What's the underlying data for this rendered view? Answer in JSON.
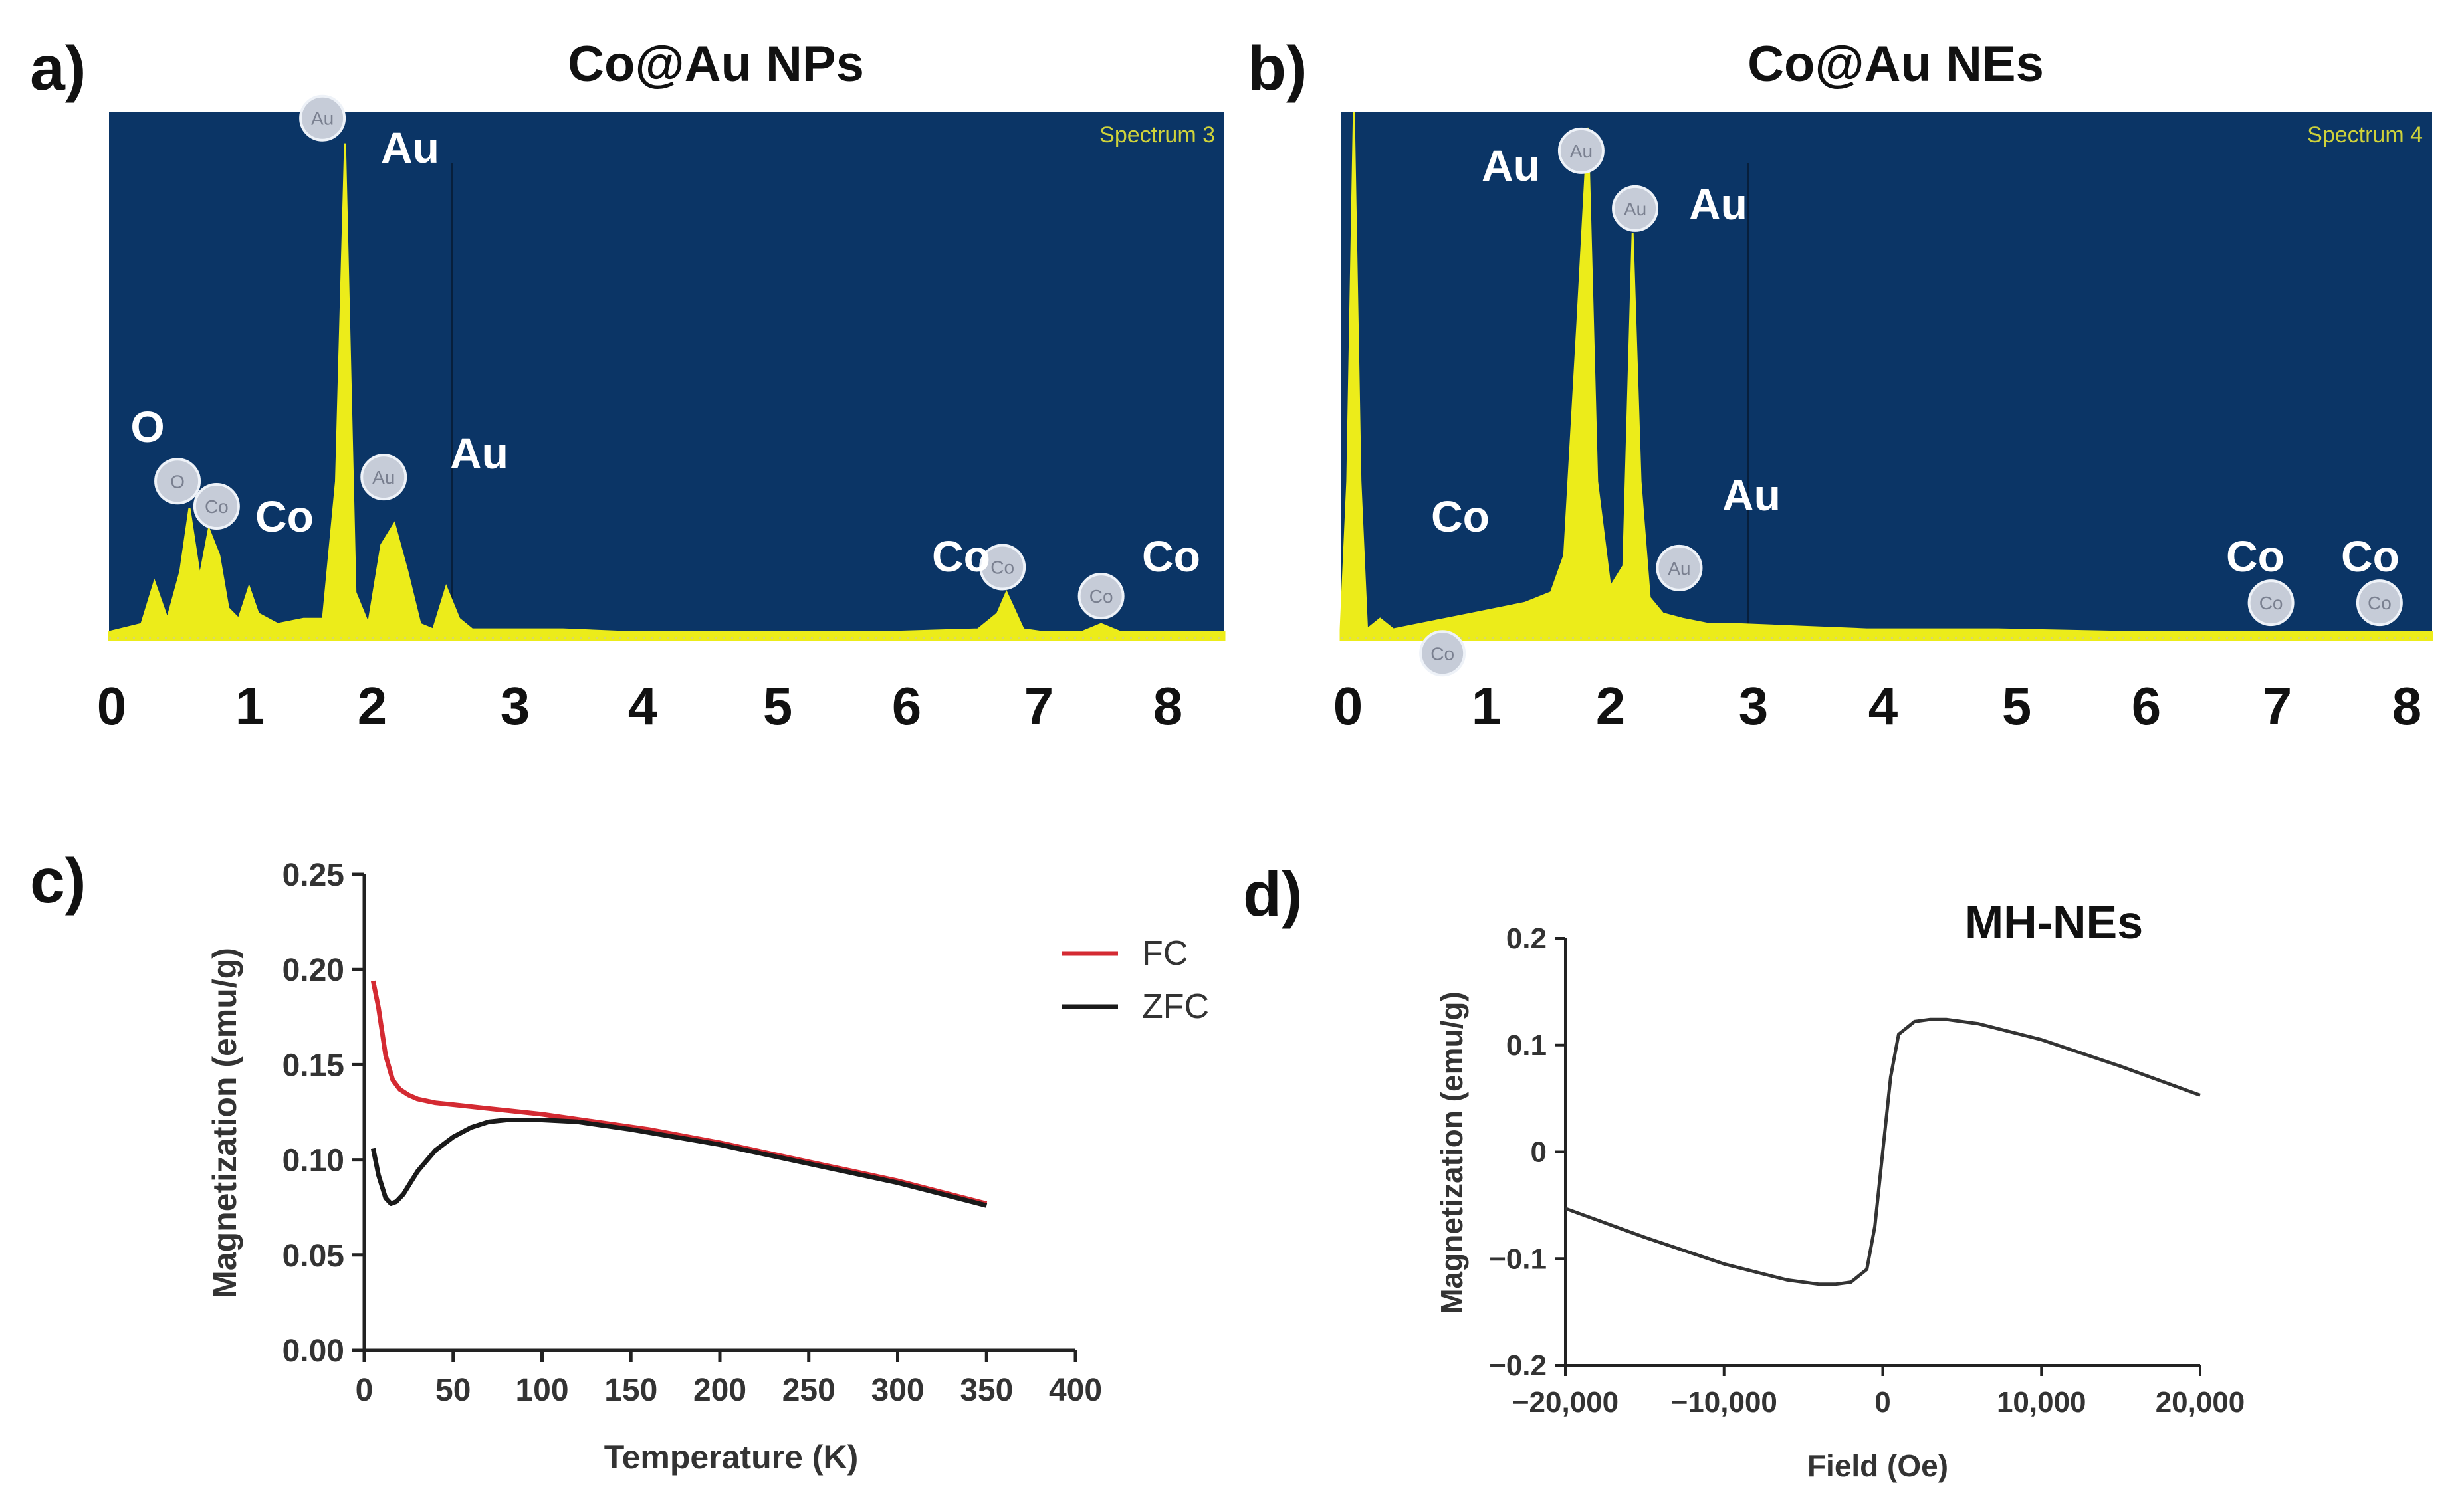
{
  "panels": {
    "a": {
      "letter": "a)",
      "title": "Co@Au NPs",
      "spectrum_label": "Spectrum 3",
      "peak_labels": [
        "O",
        "Co",
        "Au",
        "Au",
        "Co",
        "Co"
      ],
      "marker_texts": [
        "O",
        "Co",
        "Au",
        "Au",
        "Co",
        "Co"
      ]
    },
    "b": {
      "letter": "b)",
      "title": "Co@Au NEs",
      "spectrum_label": "Spectrum 4",
      "peak_labels": [
        "Co",
        "Au",
        "Au",
        "Au",
        "Co",
        "Co"
      ],
      "marker_texts": [
        "Co",
        "Au",
        "Au",
        "Au",
        "Co",
        "Co"
      ]
    },
    "c": {
      "letter": "c)"
    },
    "d": {
      "letter": "d)",
      "title": "MH-NEs"
    }
  },
  "colors": {
    "eds_background": "#0b3566",
    "eds_trace": "#ecec1a",
    "fc_line": "#d42a32",
    "zfc_line": "#1a1a1a",
    "mh_line": "#333333"
  },
  "chart_data": [
    {
      "type": "area",
      "id": "a",
      "title": "Co@Au NPs",
      "xlabel": "",
      "ylabel": "",
      "xlim": [
        0,
        8.6
      ],
      "ylim": [
        0,
        100
      ],
      "xticks": [
        "0",
        "1",
        "2",
        "3",
        "4",
        "5",
        "6",
        "7",
        "8"
      ],
      "x": [
        0,
        0.25,
        0.35,
        0.45,
        0.55,
        0.62,
        0.7,
        0.77,
        0.85,
        0.92,
        1.0,
        1.08,
        1.15,
        1.3,
        1.5,
        1.65,
        1.75,
        1.82,
        1.9,
        2.0,
        2.1,
        2.2,
        2.3,
        2.4,
        2.5,
        2.6,
        2.7,
        2.8,
        3.0,
        3.5,
        4.0,
        5.0,
        6.0,
        6.7,
        6.85,
        6.92,
        7.05,
        7.2,
        7.5,
        7.65,
        7.8,
        8.6
      ],
      "y": [
        1.5,
        3,
        11,
        4,
        13,
        25,
        12,
        21,
        16,
        6,
        4,
        10,
        5,
        3,
        4,
        4,
        30,
        94,
        9,
        3,
        18,
        22,
        13,
        3,
        2,
        10,
        4,
        2,
        2,
        2,
        1.5,
        1.5,
        1.5,
        2,
        5,
        9,
        2,
        1.5,
        1.5,
        3,
        1.5,
        1.5
      ],
      "peaks": [
        {
          "element": "O",
          "x": 0.6,
          "y": 25
        },
        {
          "element": "Co",
          "x": 0.85,
          "y": 21
        },
        {
          "element": "Au",
          "x": 1.82,
          "y": 94
        },
        {
          "element": "Au",
          "x": 2.2,
          "y": 22
        },
        {
          "element": "Co",
          "x": 6.92,
          "y": 9
        },
        {
          "element": "Co",
          "x": 7.65,
          "y": 3
        }
      ]
    },
    {
      "type": "area",
      "id": "b",
      "title": "Co@Au NEs",
      "xlabel": "",
      "ylabel": "",
      "xlim": [
        0,
        8.3
      ],
      "ylim": [
        0,
        100
      ],
      "xticks": [
        "0",
        "1",
        "2",
        "3",
        "4",
        "5",
        "6",
        "7",
        "8"
      ],
      "x": [
        0,
        0.05,
        0.1,
        0.15,
        0.2,
        0.3,
        0.4,
        0.6,
        0.8,
        1.0,
        1.2,
        1.4,
        1.6,
        1.7,
        1.8,
        1.88,
        1.95,
        2.05,
        2.15,
        2.22,
        2.28,
        2.35,
        2.45,
        2.6,
        2.8,
        3.0,
        3.5,
        4.0,
        5.0,
        6.0,
        7.0,
        7.5,
        8.3
      ],
      "y": [
        2,
        30,
        100,
        30,
        2,
        4,
        2,
        3,
        4,
        5,
        6,
        7,
        9,
        16,
        60,
        97,
        30,
        10,
        14,
        77,
        30,
        8,
        5,
        4,
        3,
        3,
        2.5,
        2,
        2,
        1.5,
        1.5,
        1.5,
        1.5
      ],
      "peaks": [
        {
          "element": "Co",
          "x": 0.85,
          "y": 5
        },
        {
          "element": "Au",
          "x": 1.88,
          "y": 97
        },
        {
          "element": "Au",
          "x": 2.28,
          "y": 77
        },
        {
          "element": "Au",
          "x": 2.55,
          "y": 18
        },
        {
          "element": "Co",
          "x": 7.1,
          "y": 2
        },
        {
          "element": "Co",
          "x": 7.9,
          "y": 2
        }
      ]
    },
    {
      "type": "line",
      "id": "c",
      "xlabel": "Temperature (K)",
      "ylabel": "Magnetization (emu/g)",
      "xlim": [
        0,
        400
      ],
      "ylim": [
        0,
        0.25
      ],
      "xticks": [
        "0",
        "50",
        "100",
        "150",
        "200",
        "250",
        "300",
        "350",
        "400"
      ],
      "yticks": [
        "0.00",
        "0.05",
        "0.10",
        "0.15",
        "0.20",
        "0.25"
      ],
      "legend_position": "right",
      "series": [
        {
          "name": "FC",
          "x": [
            5,
            8,
            12,
            16,
            20,
            25,
            30,
            40,
            50,
            70,
            100,
            130,
            160,
            200,
            250,
            300,
            350
          ],
          "y": [
            0.194,
            0.18,
            0.155,
            0.142,
            0.137,
            0.134,
            0.132,
            0.13,
            0.129,
            0.127,
            0.124,
            0.12,
            0.116,
            0.109,
            0.099,
            0.089,
            0.077
          ]
        },
        {
          "name": "ZFC",
          "x": [
            5,
            8,
            12,
            15,
            18,
            22,
            26,
            30,
            40,
            50,
            60,
            70,
            80,
            90,
            100,
            120,
            150,
            200,
            250,
            300,
            350
          ],
          "y": [
            0.106,
            0.092,
            0.08,
            0.077,
            0.078,
            0.082,
            0.088,
            0.094,
            0.105,
            0.112,
            0.117,
            0.12,
            0.121,
            0.121,
            0.121,
            0.12,
            0.116,
            0.108,
            0.098,
            0.088,
            0.076
          ]
        }
      ]
    },
    {
      "type": "line",
      "id": "d",
      "title": "MH-NEs",
      "xlabel": "Field (Oe)",
      "ylabel": "Magnetization (emu/g)",
      "xlim": [
        -20000,
        20000
      ],
      "ylim": [
        -0.2,
        0.2
      ],
      "xticks": [
        "−20,000",
        "−10,000",
        "0",
        "10,000",
        "20,000"
      ],
      "yticks": [
        "−0.2",
        "−0.1",
        "0",
        "0.1",
        "0.2"
      ],
      "series": [
        {
          "name": "MH",
          "x": [
            -20000,
            -15000,
            -10000,
            -6000,
            -4000,
            -3000,
            -2000,
            -1000,
            -500,
            0,
            500,
            1000,
            2000,
            3000,
            4000,
            6000,
            10000,
            15000,
            20000
          ],
          "y": [
            -0.053,
            -0.08,
            -0.105,
            -0.12,
            -0.124,
            -0.124,
            -0.122,
            -0.11,
            -0.07,
            0.0,
            0.07,
            0.11,
            0.122,
            0.124,
            0.124,
            0.12,
            0.105,
            0.08,
            0.053
          ]
        }
      ]
    }
  ]
}
